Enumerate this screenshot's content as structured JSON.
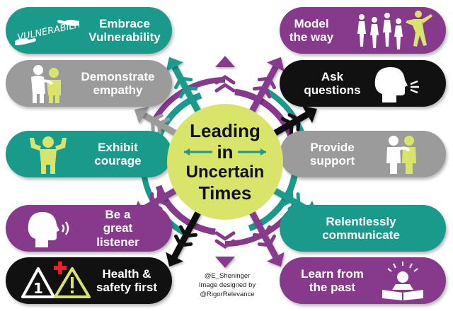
{
  "center": {
    "line1": "Leading",
    "line2": "in",
    "line3": "Uncertain",
    "line4": "Times"
  },
  "vulnerability_handwriting": "VULNERABILITY",
  "items": [
    {
      "id": "vulnerability",
      "label": "Embrace\nVulnerability",
      "color": "#1a9a8b",
      "icon": "reaching-hands-icon"
    },
    {
      "id": "empathy",
      "label": "Demonstrate\nempathy",
      "color": "#9b9b9b",
      "icon": "consoling-people-icon"
    },
    {
      "id": "courage",
      "label": "Exhibit\ncourage",
      "color": "#1a9a8b",
      "icon": "strong-person-icon"
    },
    {
      "id": "listener",
      "label": "Be a\ngreat\nlistener",
      "color": "#873a8c",
      "icon": "listening-head-icon"
    },
    {
      "id": "health",
      "label": "Health &\nsafety first",
      "color": "#111111",
      "icon": "warning-signs-icon"
    },
    {
      "id": "model",
      "label": "Model\nthe way",
      "color": "#873a8c",
      "icon": "walking-group-icon"
    },
    {
      "id": "questions",
      "label": "Ask\nquestions",
      "color": "#111111",
      "icon": "speaking-head-icon"
    },
    {
      "id": "support",
      "label": "Provide\nsupport",
      "color": "#9b9b9b",
      "icon": "supporting-people-icon"
    },
    {
      "id": "communicate",
      "label": "Relentlessly\ncommunicate",
      "color": "#1a9a8b",
      "icon": "none"
    },
    {
      "id": "past",
      "label": "Learn from\nthe past",
      "color": "#873a8c",
      "icon": "reading-book-icon"
    }
  ],
  "health_number": "1",
  "credit": {
    "line1": "@E_Sheninger",
    "line2": "Image designed by",
    "line3": "@RigorRelevance"
  },
  "colors": {
    "teal": "#1a9a8b",
    "purple": "#873a8c",
    "gray": "#9b9b9b",
    "black": "#111111",
    "lime": "#d8e46a",
    "red": "#e3222b"
  }
}
